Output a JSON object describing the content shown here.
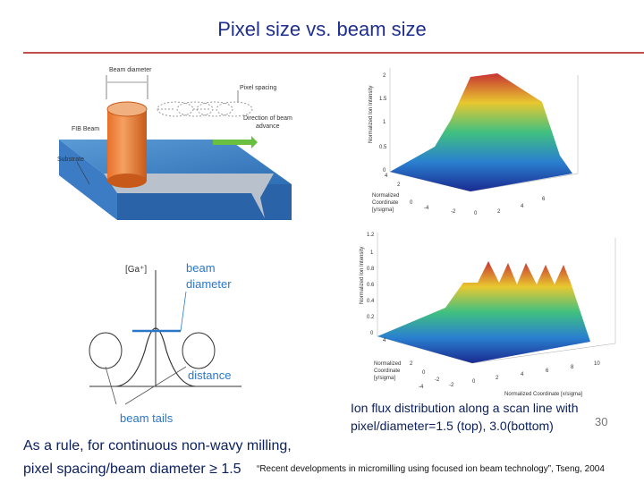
{
  "slide": {
    "title": "Pixel size vs. beam size",
    "page_number": "30",
    "caption_line1": "Ion flux distribution along a scan line with",
    "caption_line2": "pixel/diameter=1.5 (top), 3.0(bottom)",
    "rule_line1": "As a rule, for continuous non-wavy milling,",
    "rule_line2": "pixel spacing/beam diameter ≥ 1.5",
    "reference": "“Recent developments in micromilling using focused ion beam technology”, Tseng, 2004"
  },
  "fib_figure": {
    "beam_diameter": "Beam diameter",
    "pixel_spacing": "Pixel spacing",
    "fib_beam": "FIB Beam",
    "direction_line1": "Direction of beam",
    "direction_line2": "advance",
    "substrate": "Substrate"
  },
  "profile_figure": {
    "ga_label": "[Ga⁺]",
    "beam_label": "beam",
    "diameter_label": "diameter",
    "distance_label": "distance",
    "tails_label": "beam tails"
  },
  "plot_top": {
    "z_label": "Normalized Ion Intensity",
    "y_label_line1": "Normalized",
    "y_label_line2": "Coordinate",
    "y_label_line3": "[y/sigma]",
    "z_ticks": [
      "2",
      "1.5",
      "1",
      "0.5",
      "0"
    ],
    "y_ticks": [
      "4",
      "2",
      "0"
    ],
    "x_ticks": [
      "-4",
      "-2",
      "0",
      "2",
      "4",
      "6"
    ]
  },
  "plot_bottom": {
    "z_label": "Normalized Ion Intensity",
    "y_label_line1": "Normalized",
    "y_label_line2": "Coordinate",
    "y_label_line3": "[y/sigma]",
    "x_label": "Normalized Coordinate [x/sigma]",
    "z_ticks": [
      "1.2",
      "1",
      "0.8",
      "0.6",
      "0.4",
      "0.2",
      "0"
    ],
    "y_ticks": [
      "4",
      "2",
      "0",
      "-2"
    ],
    "x_ticks": [
      "-4",
      "-2",
      "0",
      "2",
      "4",
      "6",
      "8",
      "10"
    ]
  },
  "colors": {
    "title": "#1f2f8f",
    "rule": "#c0504d",
    "text": "#0b1f5c",
    "annotation": "#2a77c8"
  }
}
